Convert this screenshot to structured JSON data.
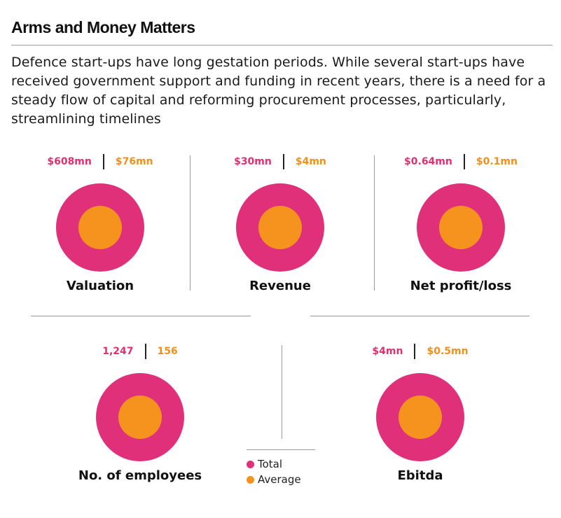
{
  "title": "Arms and Money Matters",
  "subtitle": "Defence start-ups have long gestation periods. While several start-ups have received government support and funding in recent years, there is a need for a steady flow of capital and reforming procurement processes, particularly, streamlining timelines",
  "colors": {
    "total": "#e0307a",
    "average": "#f6931f"
  },
  "chart_data": {
    "type": "bubble",
    "series": [
      {
        "name": "Total",
        "color": "#e0307a"
      },
      {
        "name": "Average",
        "color": "#f6931f"
      }
    ],
    "metrics": [
      {
        "label": "Valuation",
        "total": "$608mn",
        "average": "$76mn",
        "total_value": 608,
        "average_value": 76
      },
      {
        "label": "Revenue",
        "total": "$30mn",
        "average": "$4mn",
        "total_value": 30,
        "average_value": 4
      },
      {
        "label": "Net profit/loss",
        "total": "$0.64mn",
        "average": "$0.1mn",
        "total_value": 0.64,
        "average_value": 0.1
      },
      {
        "label": "No. of employees",
        "total": "1,247",
        "average": "156",
        "total_value": 1247,
        "average_value": 156
      },
      {
        "label": "Ebitda",
        "total": "$4mn",
        "average": "$0.5mn",
        "total_value": 4,
        "average_value": 0.5
      }
    ]
  },
  "legend": {
    "total_label": "Total",
    "average_label": "Average"
  }
}
